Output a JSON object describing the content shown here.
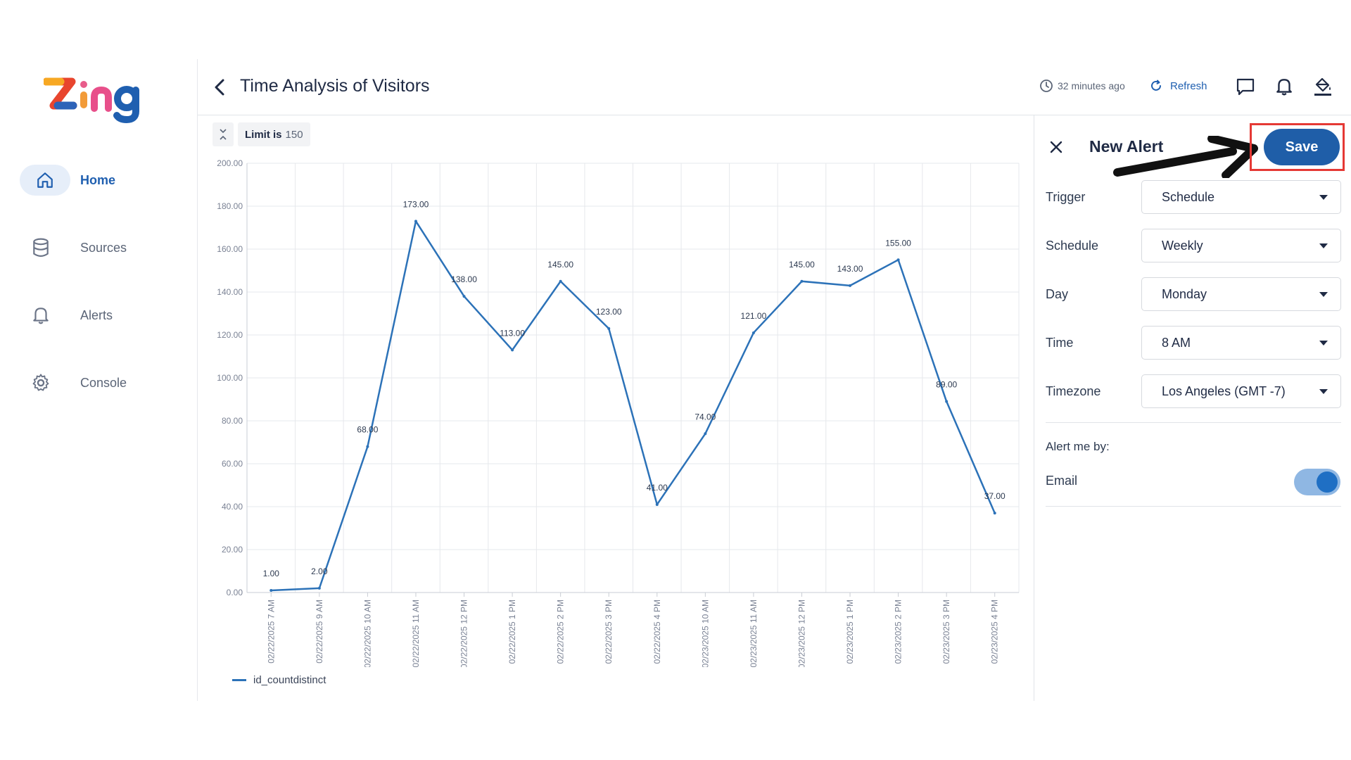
{
  "app": {
    "logo_text": "Zing"
  },
  "sidebar": {
    "items": [
      {
        "label": "Home",
        "icon": "home-icon",
        "active": true
      },
      {
        "label": "Sources",
        "icon": "database-icon",
        "active": false
      },
      {
        "label": "Alerts",
        "icon": "bell-icon",
        "active": false
      },
      {
        "label": "Console",
        "icon": "gear-icon",
        "active": false
      }
    ]
  },
  "header": {
    "title": "Time Analysis of Visitors",
    "last_updated": "32 minutes ago",
    "refresh_label": "Refresh",
    "icons": [
      "chat-icon",
      "bell-icon",
      "paint-bucket-icon"
    ]
  },
  "limit": {
    "label": "Limit is",
    "value": "150"
  },
  "chart_data": {
    "type": "line",
    "x": [
      "02/22/2025 7 AM",
      "02/22/2025 9 AM",
      "02/22/2025 10 AM",
      "02/22/2025 11 AM",
      "02/22/2025 12 PM",
      "02/22/2025 1 PM",
      "02/22/2025 2 PM",
      "02/22/2025 3 PM",
      "02/22/2025 4 PM",
      "02/23/2025 10 AM",
      "02/23/2025 11 AM",
      "02/23/2025 12 PM",
      "02/23/2025 1 PM",
      "02/23/2025 2 PM",
      "02/23/2025 3 PM",
      "02/23/2025 4 PM"
    ],
    "series": [
      {
        "name": "id_countdistinct",
        "values": [
          1,
          2,
          68,
          173,
          138,
          113,
          145,
          123,
          41,
          74,
          121,
          145,
          143,
          155,
          89,
          37
        ],
        "color": "#2c72b8"
      }
    ],
    "data_labels": [
      "1.00",
      "2.00",
      "68.00",
      "173.00",
      "138.00",
      "113.00",
      "145.00",
      "123.00",
      "41.00",
      "74.00",
      "121.00",
      "145.00",
      "143.00",
      "155.00",
      "89.00",
      "37.00"
    ],
    "y_ticks": [
      "0.00",
      "20.00",
      "40.00",
      "60.00",
      "80.00",
      "100.00",
      "120.00",
      "140.00",
      "160.00",
      "180.00",
      "200.00"
    ],
    "ylim": [
      0,
      200
    ],
    "grid": true,
    "legend_position": "bottom-left"
  },
  "panel": {
    "title": "New Alert",
    "save_label": "Save",
    "fields": [
      {
        "label": "Trigger",
        "value": "Schedule"
      },
      {
        "label": "Schedule",
        "value": "Weekly"
      },
      {
        "label": "Day",
        "value": "Monday"
      },
      {
        "label": "Time",
        "value": "8 AM"
      },
      {
        "label": "Timezone",
        "value": "Los Angeles (GMT -7)"
      }
    ],
    "alert_me_by": "Alert me by:",
    "email_label": "Email",
    "email_enabled": true,
    "accent_color": "#1f5ea8",
    "highlight_color": "#e53935"
  }
}
